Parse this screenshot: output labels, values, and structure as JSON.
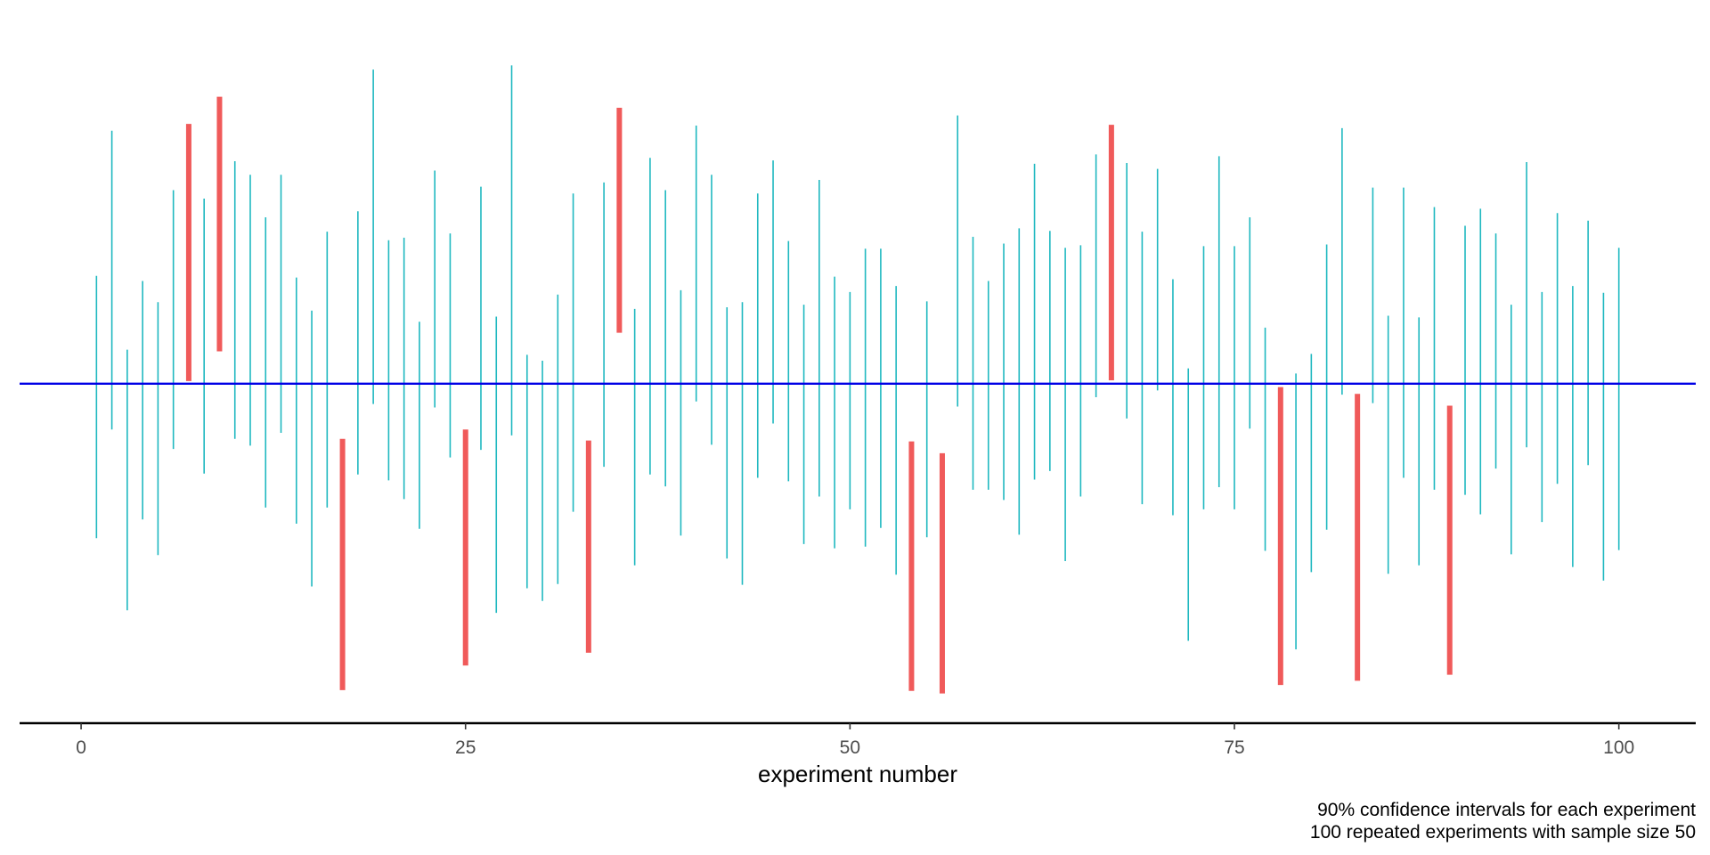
{
  "chart_data": {
    "type": "errorbar",
    "xlabel": "experiment number",
    "ylabel": "",
    "title": "",
    "caption": [
      "90% confidence intervals for each experiment",
      "100 repeated experiments with sample size 50"
    ],
    "xlim": [
      -4,
      105
    ],
    "ylim": [
      -40,
      41
    ],
    "xticks": [
      0,
      25,
      50,
      75,
      100
    ],
    "reference_line": 0,
    "grid": false,
    "legend": "none",
    "colors": {
      "covers": "#1fb8c0",
      "misses": "#f05a5a",
      "reference": "#0000e6",
      "axis": "#000000"
    },
    "intervals": [
      [
        1,
        -18.2,
        12.7
      ],
      [
        2,
        -5.4,
        29.8
      ],
      [
        3,
        -26.7,
        4.0
      ],
      [
        4,
        -16.0,
        12.1
      ],
      [
        5,
        -20.2,
        9.6
      ],
      [
        6,
        -7.7,
        22.8
      ],
      [
        7,
        0.3,
        30.6
      ],
      [
        8,
        -10.6,
        21.8
      ],
      [
        9,
        3.8,
        33.8
      ],
      [
        10,
        -6.5,
        26.2
      ],
      [
        11,
        -7.3,
        24.6
      ],
      [
        12,
        -14.6,
        19.6
      ],
      [
        13,
        -5.8,
        24.6
      ],
      [
        14,
        -16.5,
        12.5
      ],
      [
        15,
        -23.9,
        8.6
      ],
      [
        16,
        -14.6,
        17.9
      ],
      [
        17,
        -36.1,
        -6.5
      ],
      [
        18,
        -10.7,
        20.3
      ],
      [
        19,
        -2.4,
        37.0
      ],
      [
        20,
        -11.4,
        16.9
      ],
      [
        21,
        -13.6,
        17.2
      ],
      [
        22,
        -17.1,
        7.3
      ],
      [
        23,
        -2.8,
        25.1
      ],
      [
        24,
        -8.7,
        17.7
      ],
      [
        25,
        -33.2,
        -5.4
      ],
      [
        26,
        -7.8,
        23.2
      ],
      [
        27,
        -27.0,
        7.9
      ],
      [
        28,
        -6.1,
        37.5
      ],
      [
        29,
        -24.1,
        3.4
      ],
      [
        30,
        -25.6,
        2.7
      ],
      [
        31,
        -23.6,
        10.5
      ],
      [
        32,
        -15.1,
        22.4
      ],
      [
        33,
        -31.7,
        -6.7
      ],
      [
        34,
        -9.8,
        23.7
      ],
      [
        35,
        6.0,
        32.5
      ],
      [
        36,
        -21.4,
        8.8
      ],
      [
        37,
        -10.7,
        26.6
      ],
      [
        38,
        -12.1,
        22.8
      ],
      [
        39,
        -17.9,
        11.0
      ],
      [
        40,
        -2.1,
        30.4
      ],
      [
        41,
        -7.2,
        24.6
      ],
      [
        42,
        -20.6,
        9.0
      ],
      [
        43,
        -23.7,
        9.6
      ],
      [
        44,
        -11.1,
        22.4
      ],
      [
        45,
        -4.7,
        26.3
      ],
      [
        46,
        -11.5,
        16.8
      ],
      [
        47,
        -18.9,
        9.3
      ],
      [
        48,
        -13.3,
        24.0
      ],
      [
        49,
        -19.4,
        12.6
      ],
      [
        50,
        -14.8,
        10.8
      ],
      [
        51,
        -19.2,
        15.9
      ],
      [
        52,
        -17.0,
        15.9
      ],
      [
        53,
        -22.5,
        11.5
      ],
      [
        54,
        -36.2,
        -6.8
      ],
      [
        55,
        -18.1,
        9.7
      ],
      [
        56,
        -36.5,
        -8.2
      ],
      [
        57,
        -2.7,
        31.6
      ],
      [
        58,
        -12.5,
        17.3
      ],
      [
        59,
        -12.5,
        12.1
      ],
      [
        60,
        -13.7,
        16.5
      ],
      [
        61,
        -17.8,
        18.3
      ],
      [
        62,
        -11.3,
        25.9
      ],
      [
        63,
        -10.3,
        18.0
      ],
      [
        64,
        -20.9,
        16.0
      ],
      [
        65,
        -13.3,
        16.3
      ],
      [
        66,
        -1.6,
        27.0
      ],
      [
        67,
        0.4,
        30.5
      ],
      [
        68,
        -4.1,
        26.0
      ],
      [
        69,
        -14.2,
        17.9
      ],
      [
        70,
        -0.8,
        25.3
      ],
      [
        71,
        -15.5,
        12.3
      ],
      [
        72,
        -30.3,
        1.8
      ],
      [
        73,
        -14.8,
        16.2
      ],
      [
        74,
        -12.2,
        26.8
      ],
      [
        75,
        -14.8,
        16.2
      ],
      [
        76,
        -5.3,
        19.6
      ],
      [
        77,
        -19.7,
        6.6
      ],
      [
        78,
        -35.5,
        -0.4
      ],
      [
        79,
        -31.3,
        1.2
      ],
      [
        80,
        -22.2,
        3.5
      ],
      [
        81,
        -17.2,
        16.4
      ],
      [
        82,
        -1.3,
        30.1
      ],
      [
        83,
        -35.0,
        -1.2
      ],
      [
        84,
        -2.3,
        23.1
      ],
      [
        85,
        -22.4,
        8.0
      ],
      [
        86,
        -11.1,
        23.1
      ],
      [
        87,
        -21.4,
        7.8
      ],
      [
        88,
        -12.5,
        20.8
      ],
      [
        89,
        -34.3,
        -2.6
      ],
      [
        90,
        -13.1,
        18.6
      ],
      [
        91,
        -15.4,
        20.6
      ],
      [
        92,
        -10.0,
        17.7
      ],
      [
        93,
        -20.1,
        9.3
      ],
      [
        94,
        -7.5,
        26.1
      ],
      [
        95,
        -16.3,
        10.8
      ],
      [
        96,
        -11.8,
        20.1
      ],
      [
        97,
        -21.6,
        11.5
      ],
      [
        98,
        -9.6,
        19.2
      ],
      [
        99,
        -23.2,
        10.7
      ],
      [
        100,
        -19.6,
        16.0
      ]
    ]
  }
}
